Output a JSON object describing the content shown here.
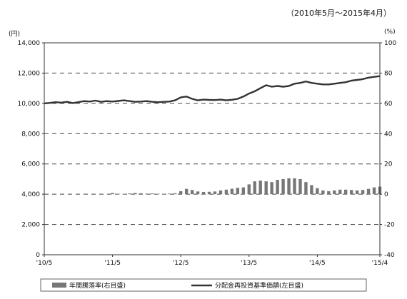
{
  "period_label": "（2010年5月～2015年4月）",
  "chart_data": {
    "type": "line+bar",
    "left_unit": "(円)",
    "right_unit": "(%)",
    "x_tick_labels": [
      "'10/5",
      "'11/5",
      "'12/5",
      "'13/5",
      "'14/5",
      "'15/4"
    ],
    "y_left": {
      "range": [
        0,
        14000
      ],
      "ticks": [
        0,
        2000,
        4000,
        6000,
        8000,
        10000,
        12000,
        14000
      ],
      "tick_labels": [
        "0",
        "2,000",
        "4,000",
        "6,000",
        "8,000",
        "10,000",
        "12,000",
        "14,000"
      ]
    },
    "y_right": {
      "range": [
        -40,
        100
      ],
      "ticks": [
        -40,
        -20,
        0,
        20,
        40,
        60,
        80,
        100
      ],
      "tick_labels": [
        "-40",
        "-20",
        "0",
        "20",
        "40",
        "60",
        "80",
        "100"
      ]
    },
    "grid": "dashed horizontal",
    "legend": {
      "position": "bottom",
      "entries": [
        {
          "label": "年間騰落率(右目盛)",
          "type": "bar",
          "color": "#777777"
        },
        {
          "label": "分配金再投資基準価額(左目盛)",
          "type": "line",
          "color": "#333333"
        }
      ]
    },
    "series": [
      {
        "name": "分配金再投資基準価額(左目盛)",
        "axis": "left",
        "type": "line",
        "color": "#333333",
        "values": [
          10000,
          10030,
          10080,
          10050,
          10100,
          10020,
          10080,
          10150,
          10120,
          10180,
          10100,
          10150,
          10120,
          10160,
          10200,
          10150,
          10100,
          10120,
          10150,
          10100,
          10080,
          10100,
          10120,
          10200,
          10400,
          10450,
          10300,
          10200,
          10250,
          10230,
          10220,
          10250,
          10200,
          10240,
          10300,
          10450,
          10650,
          10800,
          11000,
          11200,
          11100,
          11150,
          11100,
          11150,
          11300,
          11350,
          11450,
          11350,
          11300,
          11250,
          11250,
          11300,
          11350,
          11400,
          11500,
          11550,
          11600,
          11700,
          11750,
          11800
        ]
      },
      {
        "name": "年間騰落率(右目盛)",
        "axis": "right",
        "type": "bar",
        "color": "#777777",
        "values": [
          null,
          null,
          null,
          null,
          null,
          null,
          null,
          null,
          null,
          null,
          null,
          null,
          0.8,
          0.3,
          0.2,
          0.5,
          0.8,
          0.6,
          0.4,
          0.5,
          0.3,
          0.2,
          0.4,
          0.6,
          2.0,
          3.5,
          2.8,
          1.8,
          1.5,
          1.6,
          1.8,
          2.5,
          3.0,
          3.6,
          4.2,
          4.5,
          6.5,
          8.5,
          9.0,
          8.5,
          8.0,
          9.5,
          10.0,
          10.5,
          10.5,
          10.0,
          8.0,
          6.0,
          4.0,
          2.5,
          2.0,
          2.5,
          3.0,
          3.0,
          2.8,
          2.5,
          2.8,
          3.5,
          4.5,
          5.0
        ]
      }
    ]
  }
}
